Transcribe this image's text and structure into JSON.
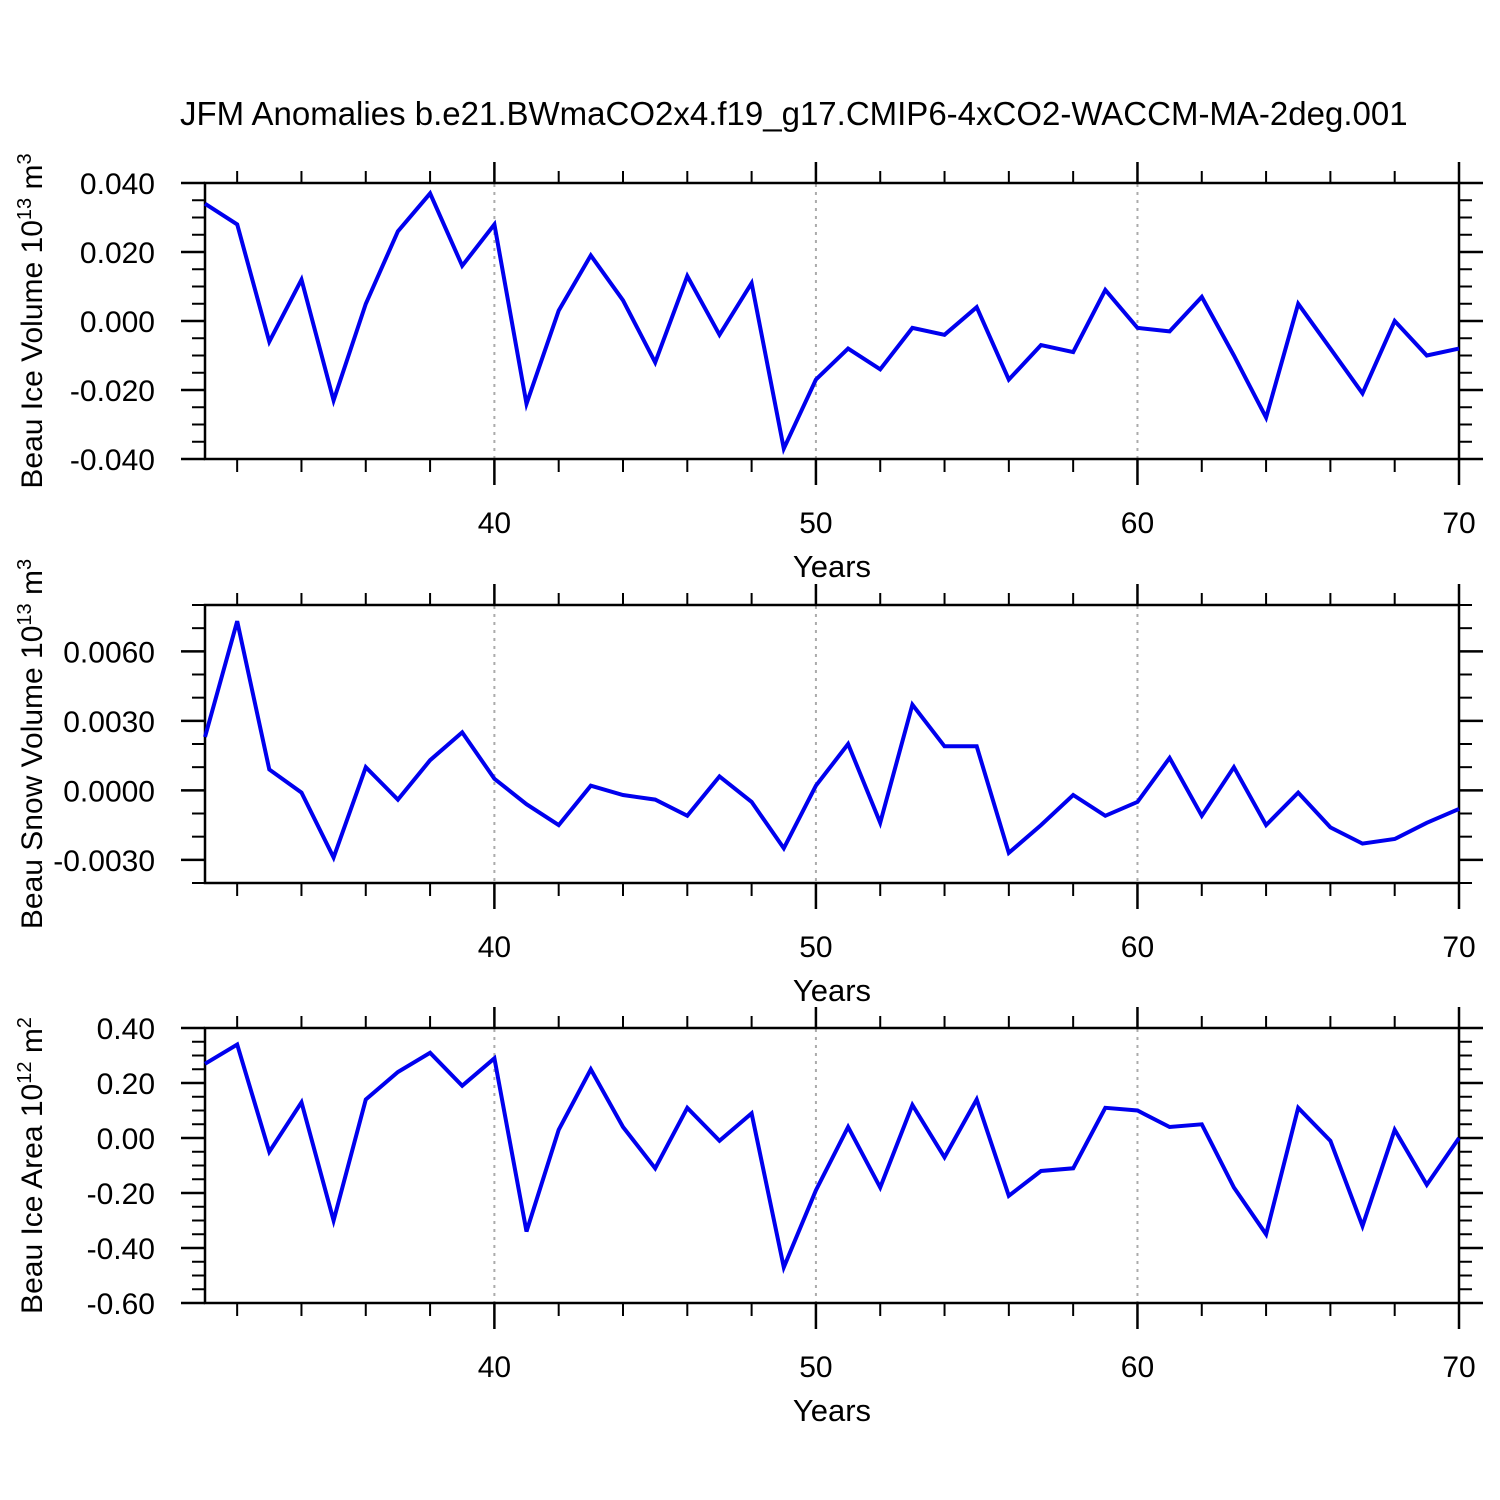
{
  "title": "JFM Anomalies b.e21.BWmaCO2x4.f19_g17.CMIP6-4xCO2-WACCM-MA-2deg.001",
  "colors": {
    "line": "#0000EE",
    "grid": "#ABABAB",
    "axis": "#000000",
    "background": "#FFFFFF"
  },
  "chart_data": {
    "type": "line",
    "title": "JFM Anomalies b.e21.BWmaCO2x4.f19_g17.CMIP6-4xCO2-WACCM-MA-2deg.001",
    "xlabel": "Years",
    "x_start_year": 31,
    "x_end_year": 70,
    "x_major_ticks": [
      40,
      50,
      60,
      70
    ],
    "x_major_tick_labels": [
      "40",
      "50",
      "60",
      "70"
    ],
    "x_minor_tick_step": 2,
    "gridline_years": [
      40,
      50,
      60
    ],
    "grid_style": "dashed-vertical",
    "legend": "none",
    "panels": [
      {
        "ylabel_plain": "Beau Ice Volume 10^13 m^3",
        "ylabel_parts": [
          {
            "t": "Beau Ice Volume 10",
            "sup": false
          },
          {
            "t": "13",
            "sup": true
          },
          {
            "t": " m",
            "sup": false
          },
          {
            "t": "3",
            "sup": true
          }
        ],
        "ylim": [
          -0.04,
          0.04
        ],
        "ytick_values": [
          0.04,
          0.02,
          0.0,
          -0.02,
          -0.04
        ],
        "ytick_labels": [
          "0.040",
          "0.020",
          "0.000",
          "-0.020",
          "-0.040"
        ],
        "y_minor_step": 0.005,
        "values": [
          0.034,
          0.028,
          -0.006,
          0.012,
          -0.023,
          0.005,
          0.026,
          0.037,
          0.016,
          0.028,
          -0.024,
          0.003,
          0.019,
          0.006,
          -0.012,
          0.013,
          -0.004,
          0.011,
          -0.037,
          -0.017,
          -0.008,
          -0.014,
          -0.002,
          -0.004,
          0.004,
          -0.017,
          -0.007,
          -0.009,
          0.009,
          -0.002,
          -0.003,
          0.007,
          -0.01,
          -0.028,
          0.005,
          -0.008,
          -0.021,
          0.0,
          -0.01,
          -0.008
        ]
      },
      {
        "ylabel_plain": "Beau Snow Volume 10^13 m^3",
        "ylabel_parts": [
          {
            "t": "Beau Snow Volume 10",
            "sup": false
          },
          {
            "t": "13",
            "sup": true
          },
          {
            "t": " m",
            "sup": false
          },
          {
            "t": "3",
            "sup": true
          }
        ],
        "ylim": [
          -0.004,
          0.008
        ],
        "ytick_values": [
          0.006,
          0.003,
          0.0,
          -0.003
        ],
        "ytick_labels": [
          "0.0060",
          "0.0030",
          "0.0000",
          "-0.0030"
        ],
        "y_minor_step": 0.001,
        "values": [
          0.0023,
          0.0073,
          0.0009,
          -0.0001,
          -0.0029,
          0.001,
          -0.0004,
          0.0013,
          0.0025,
          0.0005,
          -0.0006,
          -0.0015,
          0.0002,
          -0.0002,
          -0.0004,
          -0.0011,
          0.0006,
          -0.0005,
          -0.0025,
          0.0002,
          0.002,
          -0.0014,
          0.0037,
          0.0019,
          0.0019,
          -0.0027,
          -0.0015,
          -0.0002,
          -0.0011,
          -0.0005,
          0.0014,
          -0.0011,
          0.001,
          -0.0015,
          -0.0001,
          -0.0016,
          -0.0023,
          -0.0021,
          -0.0014,
          -0.0008
        ]
      },
      {
        "ylabel_plain": "Beau Ice Area 10^12 m^2",
        "ylabel_parts": [
          {
            "t": "Beau Ice Area 10",
            "sup": false
          },
          {
            "t": "12",
            "sup": true
          },
          {
            "t": " m",
            "sup": false
          },
          {
            "t": "2",
            "sup": true
          }
        ],
        "ylim": [
          -0.6,
          0.4
        ],
        "ytick_values": [
          0.4,
          0.2,
          0.0,
          -0.2,
          -0.4,
          -0.6
        ],
        "ytick_labels": [
          "0.40",
          "0.20",
          "0.00",
          "-0.20",
          "-0.40",
          "-0.60"
        ],
        "y_minor_step": 0.05,
        "values": [
          0.27,
          0.34,
          -0.05,
          0.13,
          -0.3,
          0.14,
          0.24,
          0.31,
          0.19,
          0.29,
          -0.34,
          0.03,
          0.25,
          0.04,
          -0.11,
          0.11,
          -0.01,
          0.09,
          -0.47,
          -0.19,
          0.04,
          -0.18,
          0.12,
          -0.07,
          0.14,
          -0.21,
          -0.12,
          -0.11,
          0.11,
          0.1,
          0.04,
          0.05,
          -0.18,
          -0.35,
          0.11,
          -0.01,
          -0.32,
          0.03,
          -0.17,
          0.0
        ]
      }
    ]
  }
}
